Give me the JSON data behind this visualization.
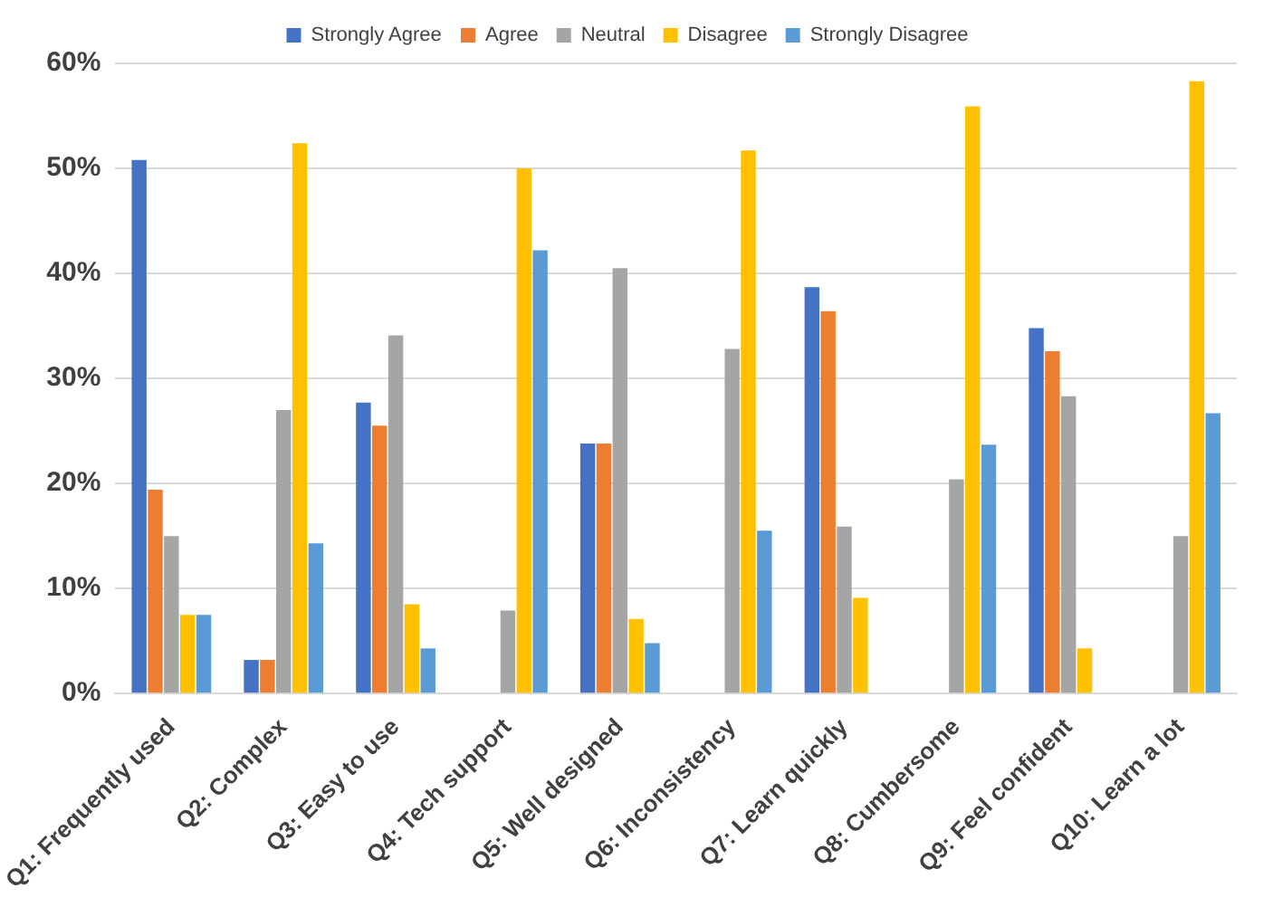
{
  "chart_data": {
    "type": "bar",
    "categories": [
      "Q1: Frequently used",
      "Q2: Complex",
      "Q3: Easy to use",
      "Q4: Tech support",
      "Q5: Well designed",
      "Q6: Inconsistency",
      "Q7: Learn quickly",
      "Q8: Cumbersome",
      "Q9: Feel confident",
      "Q10: Learn a lot"
    ],
    "series": [
      {
        "name": "Strongly Agree",
        "color": "#4472c4",
        "values": [
          50.8,
          3.2,
          27.7,
          0,
          23.8,
          0,
          38.7,
          0,
          34.8,
          0
        ]
      },
      {
        "name": "Agree",
        "color": "#ed7d31",
        "values": [
          19.4,
          3.2,
          25.5,
          0,
          23.8,
          0,
          36.4,
          0,
          32.6,
          0
        ]
      },
      {
        "name": "Neutral",
        "color": "#a5a5a5",
        "values": [
          15.0,
          27.0,
          34.1,
          7.9,
          40.5,
          32.8,
          15.9,
          20.4,
          28.3,
          15.0
        ]
      },
      {
        "name": "Disagree",
        "color": "#ffc000",
        "values": [
          7.5,
          52.4,
          8.5,
          50.0,
          7.1,
          51.7,
          9.1,
          55.9,
          4.3,
          58.3
        ]
      },
      {
        "name": "Strongly Disagree",
        "color": "#5b9bd5",
        "values": [
          7.5,
          14.3,
          4.3,
          42.2,
          4.8,
          15.5,
          0,
          23.7,
          0,
          26.7
        ]
      }
    ],
    "ylim": [
      0,
      60
    ],
    "yticks": [
      {
        "value": 0,
        "label": "0%"
      },
      {
        "value": 10,
        "label": "10%"
      },
      {
        "value": 20,
        "label": "20%"
      },
      {
        "value": 30,
        "label": "30%"
      },
      {
        "value": 40,
        "label": "40%"
      },
      {
        "value": 50,
        "label": "50%"
      },
      {
        "value": 60,
        "label": "60%"
      }
    ],
    "grid": "y",
    "legend": "top"
  }
}
